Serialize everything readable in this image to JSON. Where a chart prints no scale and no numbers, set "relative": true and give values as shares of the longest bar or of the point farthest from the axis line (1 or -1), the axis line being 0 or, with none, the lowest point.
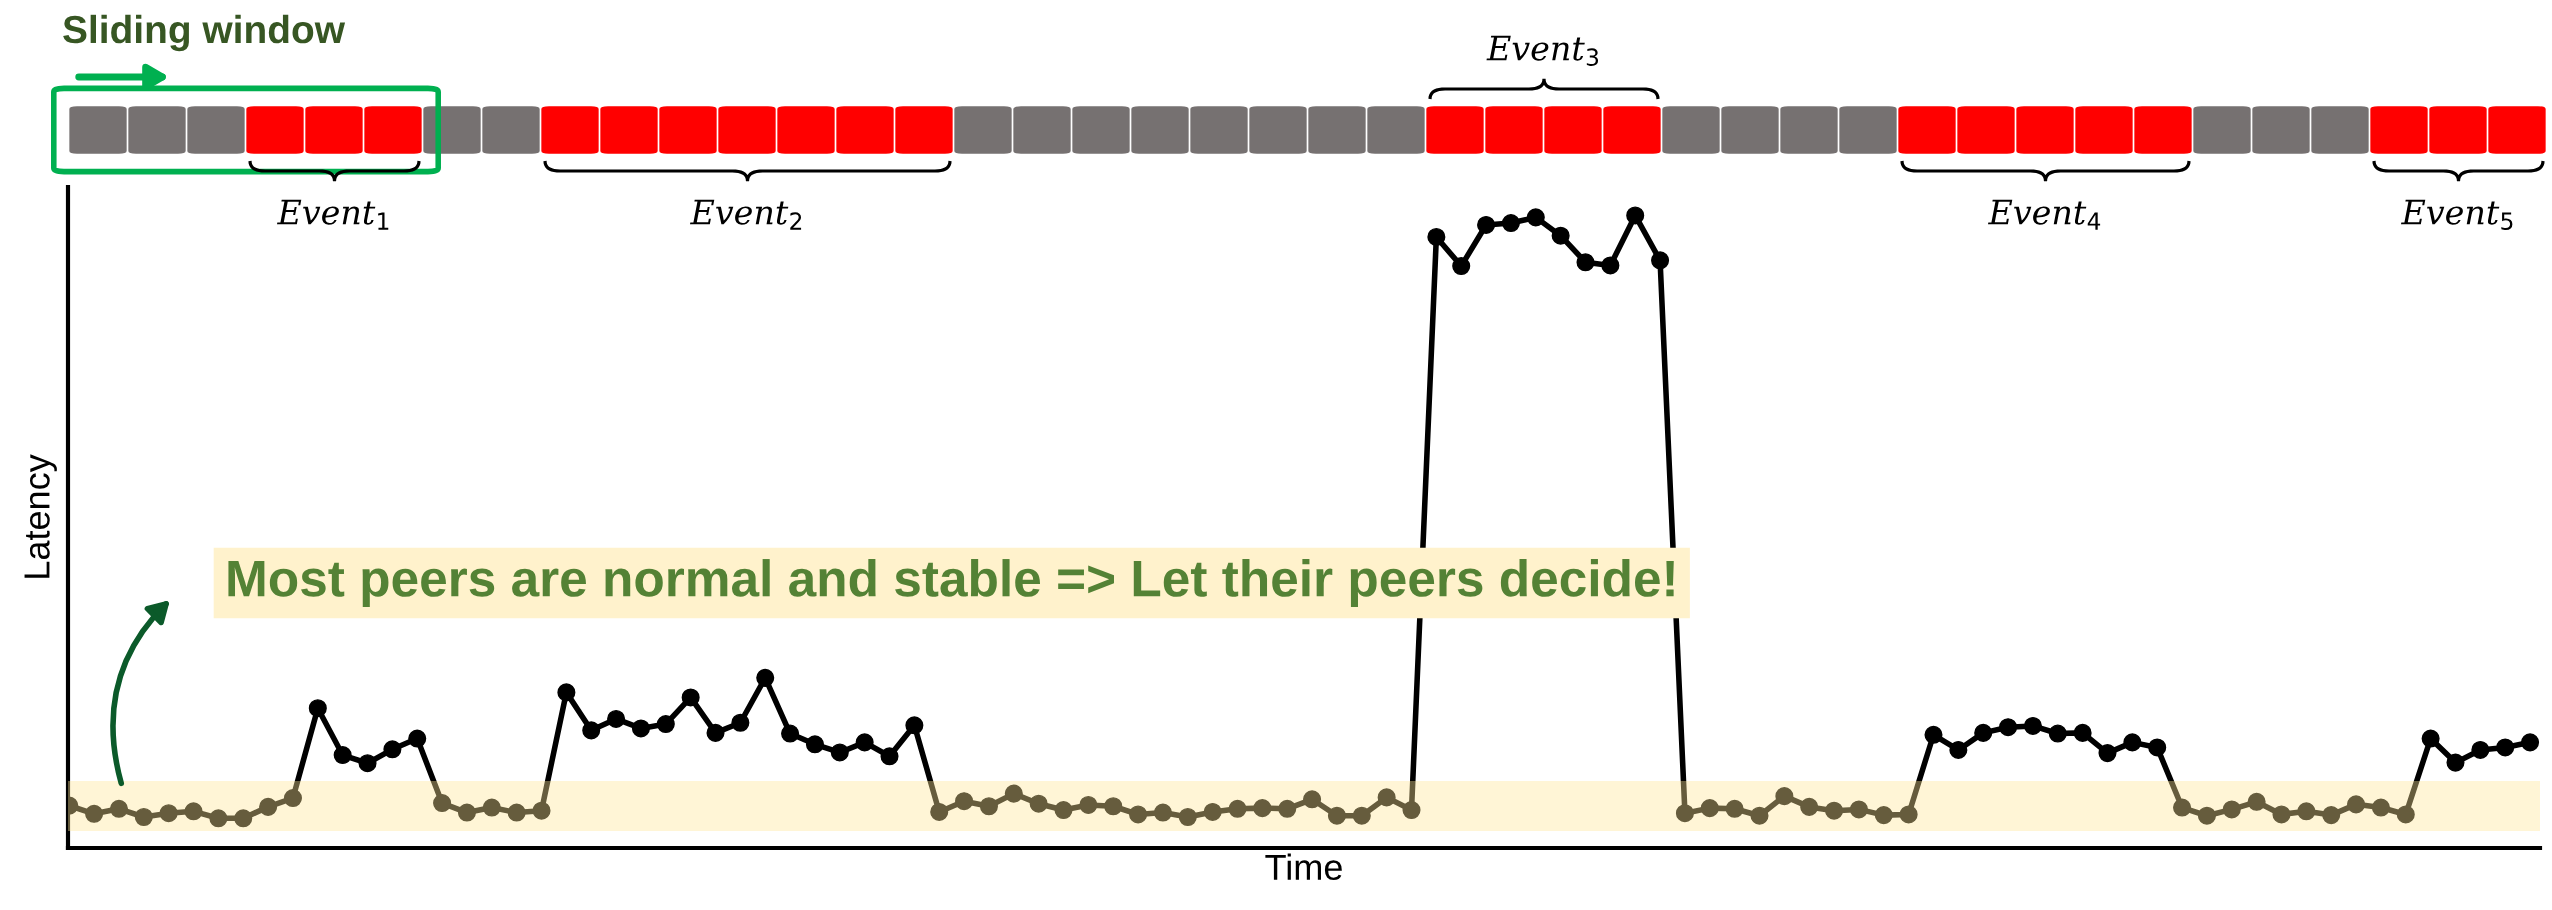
{
  "chart_data": {
    "type": "line",
    "title": "Sliding window",
    "xlabel": "Time",
    "ylabel": "Latency",
    "relative": true,
    "tick_labels": false,
    "marker": "circle",
    "line_style": "solid",
    "categories": [
      null,
      null,
      null,
      null,
      null,
      null,
      null,
      null,
      null,
      null,
      null,
      null,
      null,
      null,
      null,
      null,
      null,
      null,
      null,
      null,
      null,
      null,
      null,
      null,
      null,
      null,
      null,
      null,
      null,
      null,
      null,
      null,
      null,
      null,
      null,
      null,
      null,
      null,
      null,
      null,
      null,
      null,
      null,
      null,
      null,
      null,
      null,
      null,
      null,
      null,
      null,
      null,
      null,
      null,
      null,
      null,
      null,
      null,
      null,
      null,
      null,
      null,
      null,
      null,
      null,
      null,
      null,
      null,
      null,
      null,
      null,
      null,
      null,
      null,
      null,
      null,
      null,
      null,
      null,
      null,
      null,
      null,
      null,
      null,
      null,
      null,
      null,
      null,
      null,
      null,
      null,
      null,
      null,
      null,
      null,
      null,
      null,
      null,
      null,
      null
    ],
    "series": [
      {
        "color": "#000000",
        "values": [
          0.067,
          0.054,
          0.062,
          0.049,
          0.055,
          0.058,
          0.047,
          0.047,
          0.065,
          0.079,
          0.221,
          0.147,
          0.134,
          0.156,
          0.173,
          0.071,
          0.056,
          0.064,
          0.056,
          0.059,
          0.246,
          0.186,
          0.204,
          0.189,
          0.196,
          0.238,
          0.182,
          0.198,
          0.269,
          0.181,
          0.164,
          0.151,
          0.167,
          0.145,
          0.194,
          0.057,
          0.074,
          0.066,
          0.086,
          0.07,
          0.06,
          0.068,
          0.066,
          0.053,
          0.056,
          0.049,
          0.057,
          0.062,
          0.063,
          0.062,
          0.077,
          0.051,
          0.051,
          0.08,
          0.06,
          0.966,
          0.92,
          0.985,
          0.988,
          0.997,
          0.968,
          0.926,
          0.921,
          1.0,
          0.929,
          0.055,
          0.063,
          0.062,
          0.051,
          0.082,
          0.065,
          0.059,
          0.061,
          0.052,
          0.053,
          0.179,
          0.155,
          0.182,
          0.191,
          0.193,
          0.181,
          0.182,
          0.15,
          0.167,
          0.159,
          0.064,
          0.051,
          0.061,
          0.073,
          0.053,
          0.058,
          0.052,
          0.069,
          0.064,
          0.053,
          0.173,
          0.135,
          0.155,
          0.159,
          0.167
        ]
      }
    ],
    "bands": [
      {
        "axis": "y",
        "from": 0.027,
        "to": 0.106,
        "color": "#ffe699"
      }
    ],
    "annotations": [
      "Event$_{1}$",
      "Event$_{2}$",
      "Event$_{3}$",
      "Event$_{4}$",
      "Event$_{5}$",
      "Most peers are normal and stable => Let their peers decide!"
    ]
  }
}
